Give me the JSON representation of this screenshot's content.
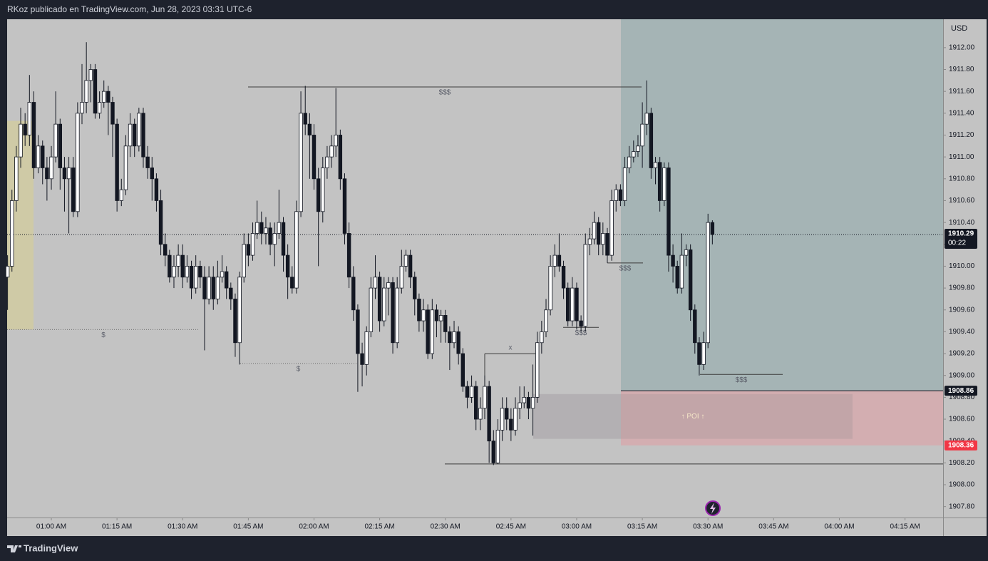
{
  "header": {
    "text": "RKoz publicado en TradingView.com, Jun 28, 2023 03:31 UTC-6"
  },
  "footer": {
    "brand": "TradingView"
  },
  "chart_data": {
    "type": "candlestick",
    "currency": "USD",
    "candle_colors": {
      "up": "#ffffff",
      "down": "#131722"
    },
    "candles": [
      [
        1909.9,
        1910.1,
        1909.6,
        1910.0
      ],
      [
        1910.0,
        1910.7,
        1909.95,
        1910.6
      ],
      [
        1910.6,
        1911.1,
        1910.5,
        1911.0
      ],
      [
        1911.0,
        1911.45,
        1910.9,
        1911.3
      ],
      [
        1911.3,
        1911.4,
        1911.1,
        1911.2
      ],
      [
        1911.2,
        1911.75,
        1911.1,
        1911.5
      ],
      [
        1911.5,
        1911.6,
        1910.8,
        1910.9
      ],
      [
        1910.9,
        1911.2,
        1910.85,
        1911.1
      ],
      [
        1911.1,
        1911.15,
        1910.75,
        1910.9
      ],
      [
        1910.9,
        1911.0,
        1910.6,
        1910.8
      ],
      [
        1910.8,
        1911.1,
        1910.7,
        1911.0
      ],
      [
        1911.0,
        1911.6,
        1910.95,
        1911.3
      ],
      [
        1911.3,
        1911.35,
        1910.7,
        1910.9
      ],
      [
        1910.9,
        1911.0,
        1910.5,
        1910.8
      ],
      [
        1910.8,
        1911.0,
        1910.3,
        1910.9
      ],
      [
        1910.9,
        1911.0,
        1910.45,
        1910.5
      ],
      [
        1910.5,
        1911.5,
        1910.45,
        1911.4
      ],
      [
        1911.4,
        1911.85,
        1911.3,
        1911.5
      ],
      [
        1911.5,
        1912.05,
        1911.4,
        1911.7
      ],
      [
        1911.7,
        1911.85,
        1911.5,
        1911.8
      ],
      [
        1911.8,
        1911.85,
        1911.35,
        1911.4
      ],
      [
        1911.4,
        1911.6,
        1911.35,
        1911.5
      ],
      [
        1911.5,
        1911.7,
        1911.45,
        1911.6
      ],
      [
        1911.6,
        1911.65,
        1911.2,
        1911.5
      ],
      [
        1911.5,
        1911.55,
        1911.0,
        1911.3
      ],
      [
        1911.3,
        1911.35,
        1910.5,
        1910.6
      ],
      [
        1910.6,
        1910.8,
        1910.55,
        1910.7
      ],
      [
        1910.7,
        1911.2,
        1910.65,
        1911.1
      ],
      [
        1911.1,
        1911.4,
        1911.0,
        1911.3
      ],
      [
        1911.3,
        1911.35,
        1911.0,
        1911.1
      ],
      [
        1911.1,
        1911.45,
        1911.05,
        1911.4
      ],
      [
        1911.4,
        1911.45,
        1910.9,
        1911.0
      ],
      [
        1911.0,
        1911.1,
        1910.8,
        1910.9
      ],
      [
        1910.9,
        1911.0,
        1910.6,
        1910.8
      ],
      [
        1910.8,
        1910.85,
        1910.5,
        1910.6
      ],
      [
        1910.6,
        1910.7,
        1910.1,
        1910.2
      ],
      [
        1910.2,
        1910.3,
        1910.0,
        1910.1
      ],
      [
        1910.1,
        1910.15,
        1909.85,
        1909.9
      ],
      [
        1909.9,
        1910.1,
        1909.8,
        1910.0
      ],
      [
        1910.0,
        1910.2,
        1909.9,
        1910.1
      ],
      [
        1910.1,
        1910.2,
        1909.8,
        1909.9
      ],
      [
        1909.9,
        1910.1,
        1909.85,
        1910.0
      ],
      [
        1910.0,
        1910.05,
        1909.7,
        1909.8
      ],
      [
        1909.8,
        1910.1,
        1909.75,
        1910.0
      ],
      [
        1910.0,
        1910.05,
        1909.8,
        1909.9
      ],
      [
        1909.9,
        1910.0,
        1909.23,
        1909.7
      ],
      [
        1909.7,
        1910.0,
        1909.65,
        1909.9
      ],
      [
        1909.9,
        1910.0,
        1909.6,
        1909.7
      ],
      [
        1909.7,
        1910.05,
        1909.65,
        1909.9
      ],
      [
        1909.9,
        1910.1,
        1909.85,
        1909.95
      ],
      [
        1909.95,
        1910.0,
        1909.7,
        1909.8
      ],
      [
        1909.8,
        1909.85,
        1909.6,
        1909.7
      ],
      [
        1909.7,
        1909.75,
        1909.17,
        1909.3
      ],
      [
        1909.3,
        1909.95,
        1909.1,
        1909.9
      ],
      [
        1909.9,
        1910.3,
        1909.85,
        1910.2
      ],
      [
        1910.2,
        1910.3,
        1910.0,
        1910.1
      ],
      [
        1910.1,
        1910.4,
        1910.05,
        1910.3
      ],
      [
        1910.3,
        1910.6,
        1910.25,
        1910.4
      ],
      [
        1910.4,
        1910.5,
        1910.2,
        1910.3
      ],
      [
        1910.3,
        1910.45,
        1910.2,
        1910.35
      ],
      [
        1910.35,
        1910.4,
        1910.1,
        1910.2
      ],
      [
        1910.2,
        1910.4,
        1910.0,
        1910.3
      ],
      [
        1910.3,
        1910.7,
        1910.25,
        1910.4
      ],
      [
        1910.4,
        1910.45,
        1909.95,
        1910.1
      ],
      [
        1910.1,
        1910.2,
        1909.7,
        1909.9
      ],
      [
        1909.9,
        1910.0,
        1909.75,
        1909.8
      ],
      [
        1909.8,
        1910.6,
        1909.75,
        1910.5
      ],
      [
        1910.5,
        1911.6,
        1910.45,
        1911.4
      ],
      [
        1911.4,
        1911.65,
        1911.2,
        1911.3
      ],
      [
        1911.3,
        1911.4,
        1910.8,
        1911.2
      ],
      [
        1911.2,
        1911.3,
        1910.7,
        1910.8
      ],
      [
        1910.8,
        1910.9,
        1910.0,
        1910.5
      ],
      [
        1910.5,
        1911.0,
        1910.4,
        1910.9
      ],
      [
        1910.9,
        1911.1,
        1910.8,
        1911.0
      ],
      [
        1911.0,
        1911.2,
        1910.9,
        1911.1
      ],
      [
        1911.1,
        1911.63,
        1911.0,
        1911.2
      ],
      [
        1911.2,
        1911.25,
        1910.7,
        1910.8
      ],
      [
        1910.8,
        1910.85,
        1910.2,
        1910.3
      ],
      [
        1910.3,
        1910.4,
        1909.8,
        1909.9
      ],
      [
        1909.9,
        1910.0,
        1909.5,
        1909.6
      ],
      [
        1909.6,
        1909.65,
        1908.85,
        1909.2
      ],
      [
        1909.2,
        1909.3,
        1908.9,
        1909.1
      ],
      [
        1909.1,
        1909.45,
        1909.0,
        1909.4
      ],
      [
        1909.4,
        1909.9,
        1909.35,
        1909.8
      ],
      [
        1909.8,
        1910.1,
        1909.7,
        1909.9
      ],
      [
        1909.9,
        1909.95,
        1909.4,
        1909.5
      ],
      [
        1909.5,
        1909.9,
        1909.45,
        1909.8
      ],
      [
        1909.8,
        1909.9,
        1909.55,
        1909.85
      ],
      [
        1909.85,
        1909.9,
        1909.2,
        1909.3
      ],
      [
        1909.3,
        1909.9,
        1909.25,
        1909.8
      ],
      [
        1909.8,
        1910.15,
        1909.75,
        1910.0
      ],
      [
        1910.0,
        1910.15,
        1909.95,
        1910.1
      ],
      [
        1910.1,
        1910.15,
        1909.8,
        1909.9
      ],
      [
        1909.9,
        1909.95,
        1909.55,
        1909.7
      ],
      [
        1909.7,
        1909.75,
        1909.4,
        1909.5
      ],
      [
        1909.5,
        1909.7,
        1909.4,
        1909.6
      ],
      [
        1909.6,
        1909.65,
        1909.15,
        1909.2
      ],
      [
        1909.2,
        1909.7,
        1909.15,
        1909.6
      ],
      [
        1909.6,
        1909.65,
        1909.35,
        1909.5
      ],
      [
        1909.5,
        1909.6,
        1909.3,
        1909.55
      ],
      [
        1909.55,
        1909.6,
        1909.3,
        1909.4
      ],
      [
        1909.4,
        1909.45,
        1909.05,
        1909.3
      ],
      [
        1909.3,
        1909.5,
        1909.25,
        1909.4
      ],
      [
        1909.4,
        1909.45,
        1909.1,
        1909.2
      ],
      [
        1909.2,
        1909.25,
        1908.85,
        1908.9
      ],
      [
        1908.9,
        1908.95,
        1908.7,
        1908.8
      ],
      [
        1908.8,
        1909.0,
        1908.75,
        1908.9
      ],
      [
        1908.9,
        1908.95,
        1908.5,
        1908.6
      ],
      [
        1908.6,
        1908.8,
        1908.5,
        1908.7
      ],
      [
        1908.7,
        1909.0,
        1908.6,
        1908.9
      ],
      [
        1908.9,
        1908.95,
        1908.2,
        1908.4
      ],
      [
        1908.4,
        1908.5,
        1908.18,
        1908.2
      ],
      [
        1908.2,
        1908.6,
        1908.19,
        1908.5
      ],
      [
        1908.5,
        1908.8,
        1908.4,
        1908.7
      ],
      [
        1908.7,
        1908.8,
        1908.5,
        1908.6
      ],
      [
        1908.6,
        1908.7,
        1908.4,
        1908.5
      ],
      [
        1908.5,
        1908.8,
        1908.45,
        1908.7
      ],
      [
        1908.7,
        1908.9,
        1908.6,
        1908.75
      ],
      [
        1908.75,
        1908.9,
        1908.7,
        1908.8
      ],
      [
        1908.8,
        1908.85,
        1908.6,
        1908.7
      ],
      [
        1908.7,
        1909.1,
        1908.45,
        1908.8
      ],
      [
        1908.8,
        1909.4,
        1908.75,
        1909.3
      ],
      [
        1909.3,
        1909.5,
        1909.2,
        1909.4
      ],
      [
        1909.4,
        1909.7,
        1909.35,
        1909.6
      ],
      [
        1909.6,
        1910.1,
        1909.55,
        1910.0
      ],
      [
        1910.0,
        1910.2,
        1909.9,
        1910.1
      ],
      [
        1910.1,
        1910.3,
        1909.95,
        1910.0
      ],
      [
        1910.0,
        1910.05,
        1909.7,
        1909.8
      ],
      [
        1909.8,
        1909.85,
        1909.45,
        1909.5
      ],
      [
        1909.5,
        1909.9,
        1909.45,
        1909.8
      ],
      [
        1909.8,
        1909.85,
        1909.42,
        1909.5
      ],
      [
        1909.5,
        1909.55,
        1909.4,
        1909.45
      ],
      [
        1909.45,
        1910.3,
        1909.4,
        1910.2
      ],
      [
        1910.2,
        1910.35,
        1910.1,
        1910.25
      ],
      [
        1910.25,
        1910.5,
        1910.2,
        1910.4
      ],
      [
        1910.4,
        1910.45,
        1910.1,
        1910.2
      ],
      [
        1910.2,
        1910.4,
        1910.1,
        1910.3
      ],
      [
        1910.3,
        1910.35,
        1910.03,
        1910.1
      ],
      [
        1910.1,
        1910.7,
        1910.05,
        1910.6
      ],
      [
        1910.6,
        1910.75,
        1910.5,
        1910.7
      ],
      [
        1910.7,
        1910.75,
        1910.55,
        1910.6
      ],
      [
        1910.6,
        1911.0,
        1910.55,
        1910.9
      ],
      [
        1910.9,
        1911.1,
        1910.85,
        1911.0
      ],
      [
        1911.0,
        1911.15,
        1910.95,
        1911.05
      ],
      [
        1911.05,
        1911.2,
        1911.0,
        1911.1
      ],
      [
        1911.1,
        1911.5,
        1910.9,
        1911.3
      ],
      [
        1911.3,
        1911.7,
        1911.2,
        1911.4
      ],
      [
        1911.4,
        1911.45,
        1910.8,
        1910.9
      ],
      [
        1910.9,
        1911.0,
        1910.75,
        1910.95
      ],
      [
        1910.95,
        1911.0,
        1910.5,
        1910.6
      ],
      [
        1910.6,
        1910.95,
        1910.55,
        1910.9
      ],
      [
        1910.9,
        1910.95,
        1909.95,
        1910.1
      ],
      [
        1910.1,
        1910.2,
        1909.85,
        1910.0
      ],
      [
        1910.0,
        1910.05,
        1909.75,
        1909.8
      ],
      [
        1909.8,
        1910.3,
        1909.75,
        1910.1
      ],
      [
        1910.1,
        1910.2,
        1910.0,
        1910.15
      ],
      [
        1910.15,
        1910.2,
        1909.5,
        1909.6
      ],
      [
        1909.6,
        1909.65,
        1909.2,
        1909.3
      ],
      [
        1909.3,
        1909.35,
        1909.0,
        1909.1
      ],
      [
        1909.1,
        1909.4,
        1909.05,
        1909.3
      ],
      [
        1909.3,
        1910.48,
        1909.25,
        1910.4
      ],
      [
        1910.4,
        1910.42,
        1910.2,
        1910.29
      ]
    ],
    "xlim": [
      -0.1,
      213.7
    ],
    "xticks": [
      {
        "value": 10,
        "label": "01:00 AM"
      },
      {
        "value": 25,
        "label": "01:15 AM"
      },
      {
        "value": 40,
        "label": "01:30 AM"
      },
      {
        "value": 55,
        "label": "01:45 AM"
      },
      {
        "value": 70,
        "label": "02:00 AM"
      },
      {
        "value": 85,
        "label": "02:15 AM"
      },
      {
        "value": 100,
        "label": "02:30 AM"
      },
      {
        "value": 115,
        "label": "02:45 AM"
      },
      {
        "value": 130,
        "label": "03:00 AM"
      },
      {
        "value": 145,
        "label": "03:15 AM"
      },
      {
        "value": 160,
        "label": "03:30 AM"
      },
      {
        "value": 175,
        "label": "03:45 AM"
      },
      {
        "value": 190,
        "label": "04:00 AM"
      },
      {
        "value": 205,
        "label": "04:15 AM"
      }
    ],
    "ylim": [
      1907.7,
      1912.26
    ],
    "yticks": [
      {
        "value": 1907.8,
        "label": "1907.80"
      },
      {
        "value": 1908,
        "label": "1908.00"
      },
      {
        "value": 1908.2,
        "label": "1908.20"
      },
      {
        "value": 1908.4,
        "label": "1908.40"
      },
      {
        "value": 1908.6,
        "label": "1908.60"
      },
      {
        "value": 1908.8,
        "label": "1908.80"
      },
      {
        "value": 1909,
        "label": "1909.00"
      },
      {
        "value": 1909.2,
        "label": "1909.20"
      },
      {
        "value": 1909.4,
        "label": "1909.40"
      },
      {
        "value": 1909.6,
        "label": "1909.60"
      },
      {
        "value": 1909.8,
        "label": "1909.80"
      },
      {
        "value": 1910,
        "label": "1910.00"
      },
      {
        "value": 1910.2,
        "label": "1910.20"
      },
      {
        "value": 1910.4,
        "label": "1910.40"
      },
      {
        "value": 1910.6,
        "label": "1910.60"
      },
      {
        "value": 1910.8,
        "label": "1910.80"
      },
      {
        "value": 1911,
        "label": "1911.00"
      },
      {
        "value": 1911.2,
        "label": "1911.20"
      },
      {
        "value": 1911.4,
        "label": "1911.40"
      },
      {
        "value": 1911.6,
        "label": "1911.60"
      },
      {
        "value": 1911.8,
        "label": "1911.80"
      },
      {
        "value": 1912,
        "label": "1912.00"
      }
    ],
    "last_price": 1910.29,
    "countdown": "00:22",
    "position": {
      "entry": 1908.86,
      "stop": 1908.36,
      "target_color": "#a5b4b5",
      "stop_color": "#d3aeb1"
    },
    "zones": [
      {
        "top": 1911.33,
        "bottom": 1909.42,
        "color": "#cfcaa6"
      },
      {
        "top": 1908.83,
        "bottom": 1908.42,
        "color": "#b0adb0",
        "text": "↑ POI ↑"
      }
    ],
    "annotations": [
      {
        "text": "$$$",
        "price": 1911.64
      },
      {
        "text": "$",
        "price": 1909.42,
        "style": "dotted"
      },
      {
        "text": "$",
        "price": 1909.11,
        "style": "dotted"
      },
      {
        "text": "$$$",
        "price": 1910.03
      },
      {
        "text": "$$$",
        "price": 1909.44
      },
      {
        "text": "$$$",
        "price": 1909.01
      },
      {
        "text": "x",
        "price": 1909.2
      },
      {
        "price": 1908.19
      }
    ]
  }
}
